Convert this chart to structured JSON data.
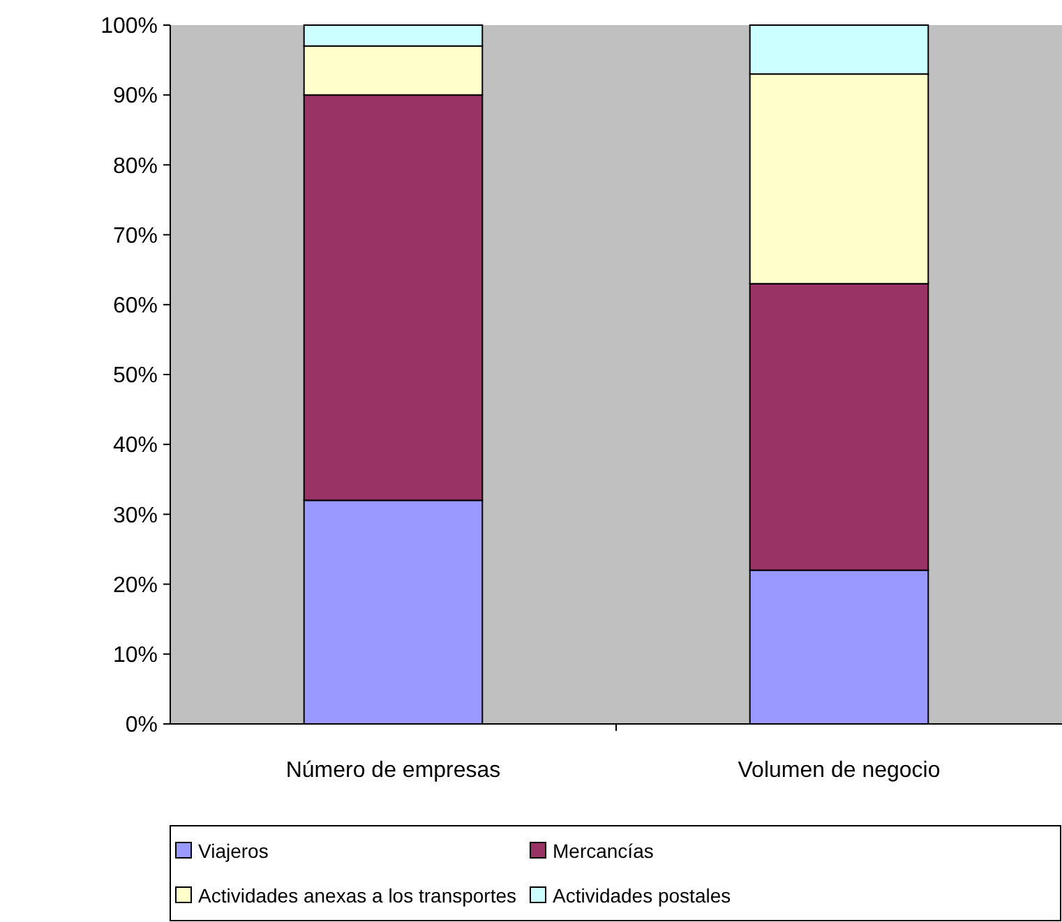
{
  "chart_data": {
    "type": "bar",
    "stacked": true,
    "categories": [
      "Número de empresas",
      "Volumen de negocio"
    ],
    "series": [
      {
        "name": "Viajeros",
        "color": "#9999ff",
        "values": [
          32,
          22
        ]
      },
      {
        "name": "Mercancías",
        "color": "#993366",
        "values": [
          58,
          41
        ]
      },
      {
        "name": "Actividades anexas a los transportes",
        "color": "#ffffcc",
        "values": [
          7,
          30
        ]
      },
      {
        "name": "Actividades postales",
        "color": "#ccffff",
        "values": [
          3,
          7
        ]
      }
    ],
    "ylim": [
      0,
      100
    ],
    "yticks": [
      {
        "value": 0,
        "label": "0%"
      },
      {
        "value": 10,
        "label": "10%"
      },
      {
        "value": 20,
        "label": "20%"
      },
      {
        "value": 30,
        "label": "30%"
      },
      {
        "value": 40,
        "label": "40%"
      },
      {
        "value": 50,
        "label": "50%"
      },
      {
        "value": 60,
        "label": "60%"
      },
      {
        "value": 70,
        "label": "70%"
      },
      {
        "value": 80,
        "label": "80%"
      },
      {
        "value": 90,
        "label": "90%"
      },
      {
        "value": 100,
        "label": "100%"
      }
    ],
    "grid": false,
    "legend": "bottom"
  }
}
